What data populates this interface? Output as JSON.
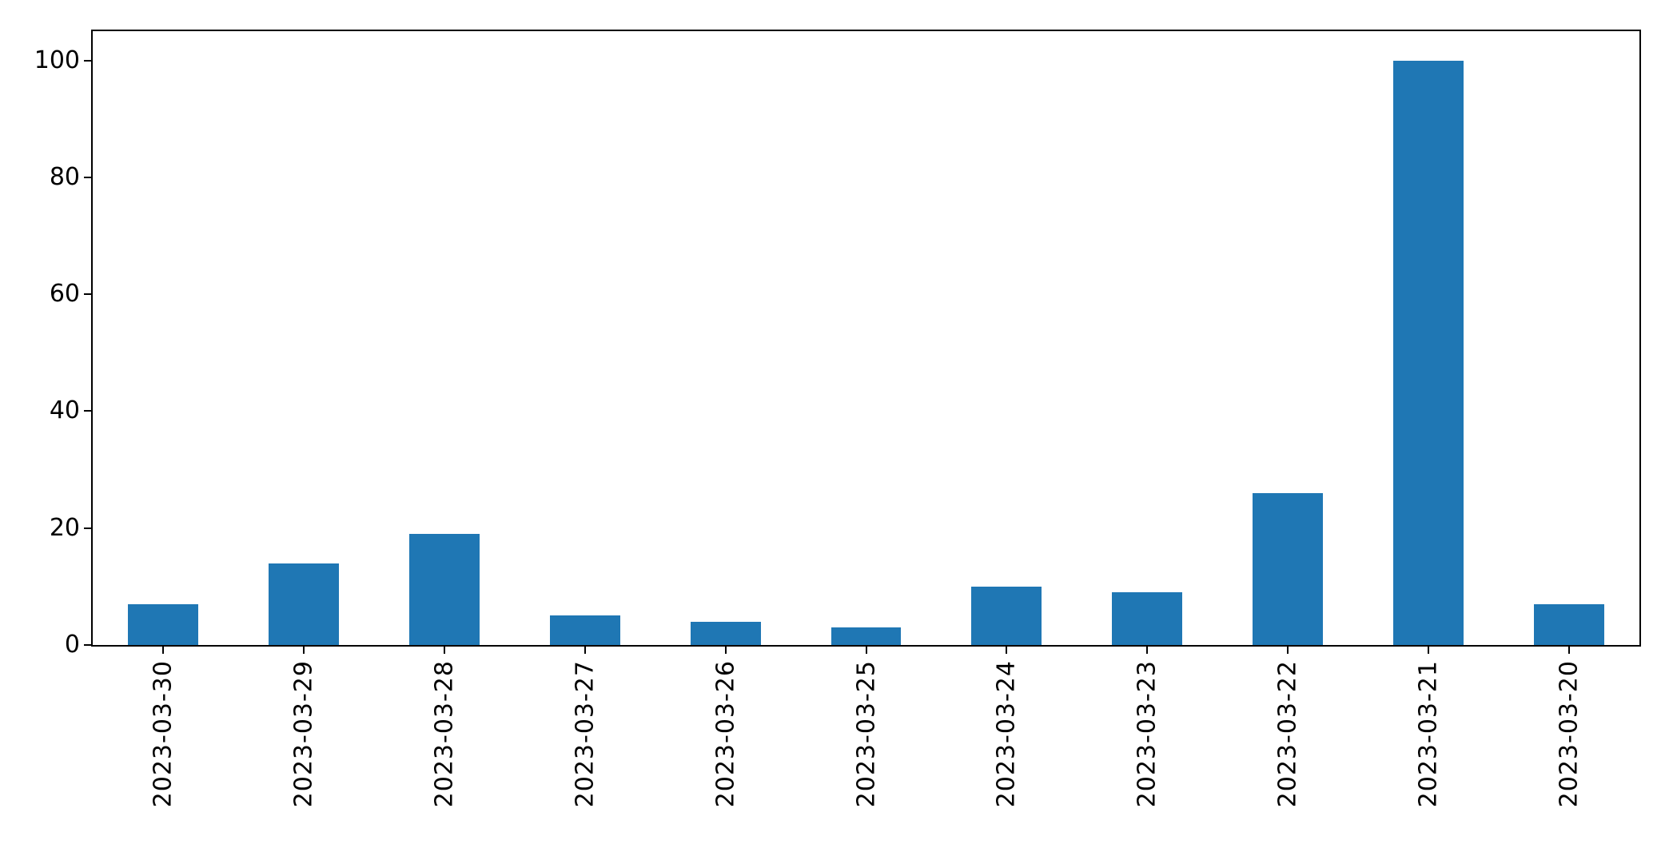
{
  "chart_data": {
    "type": "bar",
    "title": "",
    "xlabel": "",
    "ylabel": "",
    "categories": [
      "2023-03-30",
      "2023-03-29",
      "2023-03-28",
      "2023-03-27",
      "2023-03-26",
      "2023-03-25",
      "2023-03-24",
      "2023-03-23",
      "2023-03-22",
      "2023-03-21",
      "2023-03-20"
    ],
    "values": [
      7,
      14,
      19,
      5,
      4,
      3,
      10,
      9,
      26,
      100,
      7
    ],
    "yticks": [
      0,
      20,
      40,
      60,
      80,
      100
    ],
    "ylim": [
      0,
      105
    ],
    "bar_color": "#1f77b4",
    "bar_width_fraction": 0.5,
    "x_tick_rotation": 90,
    "grid": false,
    "legend": false,
    "background_color": "#ffffff",
    "spine_color": "#000000"
  }
}
